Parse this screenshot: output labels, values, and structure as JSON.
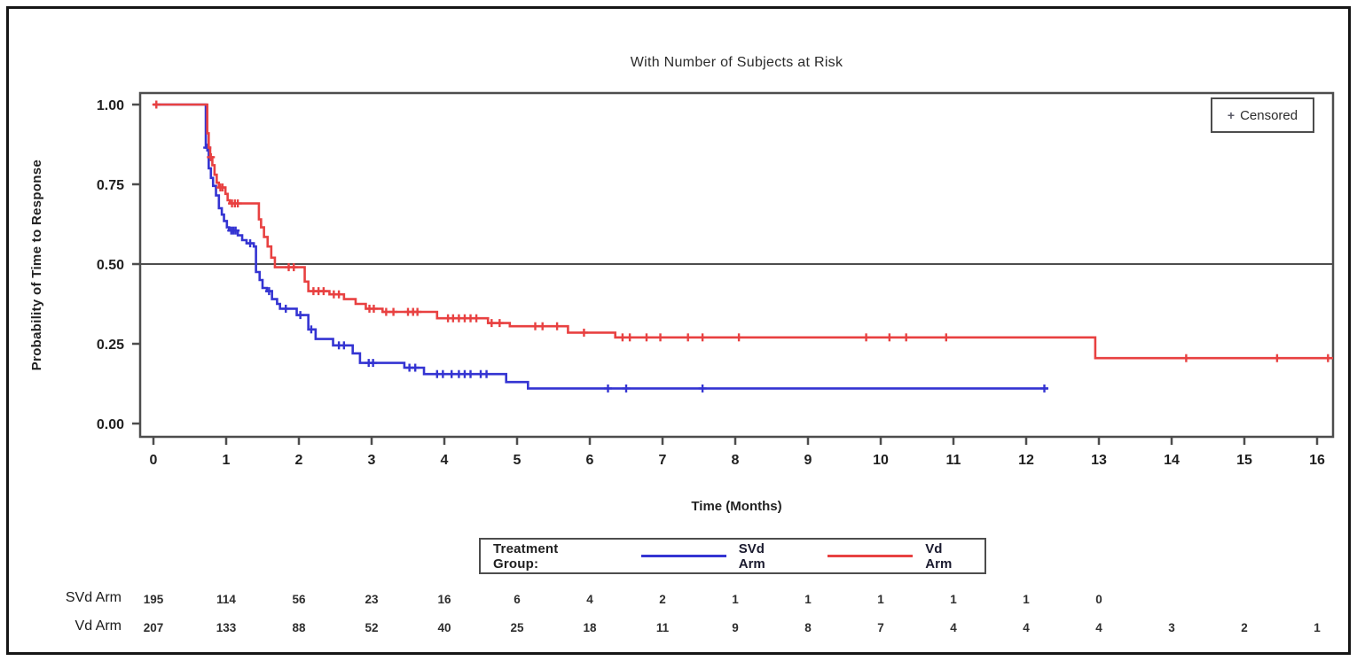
{
  "chart_data": {
    "type": "line",
    "subtype": "kaplan-meier-step",
    "title": "With Number of Subjects at Risk",
    "xlabel": "Time (Months)",
    "ylabel": "Probability of Time to Response",
    "xlim": [
      0,
      16.3
    ],
    "ylim": [
      0,
      1
    ],
    "x_ticks": [
      "0",
      "1",
      "2",
      "3",
      "4",
      "5",
      "6",
      "7",
      "8",
      "9",
      "10",
      "11",
      "12",
      "13",
      "14",
      "15",
      "16"
    ],
    "y_ticks": [
      {
        "value": 0.0,
        "label": "0.00"
      },
      {
        "value": 0.25,
        "label": "0.25"
      },
      {
        "value": 0.5,
        "label": "0.50"
      },
      {
        "value": 0.75,
        "label": "0.75"
      },
      {
        "value": 1.0,
        "label": "1.00"
      }
    ],
    "reference_line_y": 0.5,
    "grid": false,
    "censored_marker_label": "+ Censored",
    "censored_plus_glyph": "+",
    "legend": {
      "position": "bottom-center",
      "title": "Treatment Group:",
      "entries": [
        {
          "name": "SVd Arm",
          "color": "#3434d2"
        },
        {
          "name": "Vd Arm",
          "color": "#e84141"
        }
      ]
    },
    "series": [
      {
        "name": "SVd Arm",
        "color": "#3434d2",
        "start": [
          0,
          1.0
        ],
        "end_time": 12.3,
        "steps": [
          [
            0.72,
            0.865
          ],
          [
            0.76,
            0.8
          ],
          [
            0.79,
            0.77
          ],
          [
            0.82,
            0.745
          ],
          [
            0.86,
            0.715
          ],
          [
            0.9,
            0.675
          ],
          [
            0.94,
            0.655
          ],
          [
            0.97,
            0.635
          ],
          [
            1.01,
            0.615
          ],
          [
            1.04,
            0.605
          ],
          [
            1.16,
            0.59
          ],
          [
            1.22,
            0.575
          ],
          [
            1.28,
            0.565
          ],
          [
            1.38,
            0.555
          ],
          [
            1.41,
            0.475
          ],
          [
            1.46,
            0.45
          ],
          [
            1.5,
            0.425
          ],
          [
            1.56,
            0.415
          ],
          [
            1.63,
            0.39
          ],
          [
            1.7,
            0.375
          ],
          [
            1.74,
            0.36
          ],
          [
            1.97,
            0.34
          ],
          [
            2.13,
            0.295
          ],
          [
            2.23,
            0.265
          ],
          [
            2.47,
            0.245
          ],
          [
            2.74,
            0.22
          ],
          [
            2.84,
            0.19
          ],
          [
            3.45,
            0.175
          ],
          [
            3.72,
            0.155
          ],
          [
            4.85,
            0.13
          ],
          [
            5.15,
            0.11
          ]
        ],
        "censors": [
          [
            0.74,
            0.865
          ],
          [
            1.07,
            0.605
          ],
          [
            1.1,
            0.605
          ],
          [
            1.13,
            0.605
          ],
          [
            1.33,
            0.565
          ],
          [
            1.59,
            0.415
          ],
          [
            1.82,
            0.36
          ],
          [
            2.02,
            0.34
          ],
          [
            2.17,
            0.295
          ],
          [
            2.55,
            0.245
          ],
          [
            2.62,
            0.245
          ],
          [
            2.96,
            0.19
          ],
          [
            3.02,
            0.19
          ],
          [
            3.52,
            0.175
          ],
          [
            3.6,
            0.175
          ],
          [
            3.9,
            0.155
          ],
          [
            3.98,
            0.155
          ],
          [
            4.1,
            0.155
          ],
          [
            4.2,
            0.155
          ],
          [
            4.28,
            0.155
          ],
          [
            4.36,
            0.155
          ],
          [
            4.5,
            0.155
          ],
          [
            4.58,
            0.155
          ],
          [
            6.25,
            0.11
          ],
          [
            6.5,
            0.11
          ],
          [
            7.55,
            0.11
          ],
          [
            12.25,
            0.11
          ]
        ]
      },
      {
        "name": "Vd Arm",
        "color": "#e84141",
        "start": [
          0,
          1.0
        ],
        "end_time": 16.22,
        "steps": [
          [
            0.74,
            0.91
          ],
          [
            0.76,
            0.865
          ],
          [
            0.78,
            0.835
          ],
          [
            0.81,
            0.81
          ],
          [
            0.84,
            0.78
          ],
          [
            0.87,
            0.755
          ],
          [
            0.9,
            0.74
          ],
          [
            0.99,
            0.72
          ],
          [
            1.02,
            0.7
          ],
          [
            1.05,
            0.69
          ],
          [
            1.45,
            0.64
          ],
          [
            1.48,
            0.615
          ],
          [
            1.52,
            0.585
          ],
          [
            1.57,
            0.555
          ],
          [
            1.62,
            0.52
          ],
          [
            1.67,
            0.49
          ],
          [
            2.08,
            0.445
          ],
          [
            2.13,
            0.415
          ],
          [
            2.42,
            0.405
          ],
          [
            2.62,
            0.39
          ],
          [
            2.78,
            0.375
          ],
          [
            2.92,
            0.36
          ],
          [
            3.15,
            0.35
          ],
          [
            3.9,
            0.33
          ],
          [
            4.6,
            0.315
          ],
          [
            4.9,
            0.305
          ],
          [
            5.7,
            0.285
          ],
          [
            6.35,
            0.27
          ],
          [
            12.95,
            0.205
          ]
        ],
        "censors": [
          [
            0.04,
            1.0
          ],
          [
            0.79,
            0.835
          ],
          [
            0.92,
            0.74
          ],
          [
            0.95,
            0.74
          ],
          [
            1.08,
            0.69
          ],
          [
            1.12,
            0.69
          ],
          [
            1.16,
            0.69
          ],
          [
            1.86,
            0.49
          ],
          [
            1.93,
            0.49
          ],
          [
            2.2,
            0.415
          ],
          [
            2.27,
            0.415
          ],
          [
            2.34,
            0.415
          ],
          [
            2.48,
            0.405
          ],
          [
            2.55,
            0.405
          ],
          [
            2.97,
            0.36
          ],
          [
            3.03,
            0.36
          ],
          [
            3.2,
            0.35
          ],
          [
            3.3,
            0.35
          ],
          [
            3.5,
            0.35
          ],
          [
            3.57,
            0.35
          ],
          [
            3.63,
            0.35
          ],
          [
            4.05,
            0.33
          ],
          [
            4.12,
            0.33
          ],
          [
            4.2,
            0.33
          ],
          [
            4.28,
            0.33
          ],
          [
            4.36,
            0.33
          ],
          [
            4.44,
            0.33
          ],
          [
            4.65,
            0.315
          ],
          [
            4.76,
            0.315
          ],
          [
            5.25,
            0.305
          ],
          [
            5.35,
            0.305
          ],
          [
            5.55,
            0.305
          ],
          [
            5.92,
            0.285
          ],
          [
            6.45,
            0.27
          ],
          [
            6.55,
            0.27
          ],
          [
            6.78,
            0.27
          ],
          [
            6.97,
            0.27
          ],
          [
            7.35,
            0.27
          ],
          [
            7.55,
            0.27
          ],
          [
            8.05,
            0.27
          ],
          [
            9.8,
            0.27
          ],
          [
            10.12,
            0.27
          ],
          [
            10.35,
            0.27
          ],
          [
            10.9,
            0.27
          ],
          [
            14.2,
            0.205
          ],
          [
            15.45,
            0.205
          ],
          [
            16.15,
            0.205
          ]
        ]
      }
    ],
    "risk_table": {
      "rows": [
        {
          "label": "SVd Arm",
          "values": [
            195,
            114,
            56,
            23,
            16,
            6,
            4,
            2,
            1,
            1,
            1,
            1,
            1,
            0
          ]
        },
        {
          "label": "Vd Arm",
          "values": [
            207,
            133,
            88,
            52,
            40,
            25,
            18,
            11,
            9,
            8,
            7,
            4,
            4,
            4,
            3,
            2,
            1
          ]
        }
      ]
    },
    "colors": {
      "frame": "#4d4d4d",
      "reference_line": "#4d4d4d",
      "tick_text": "#1f1f1f",
      "risk_number": "#2e2e2e"
    }
  }
}
